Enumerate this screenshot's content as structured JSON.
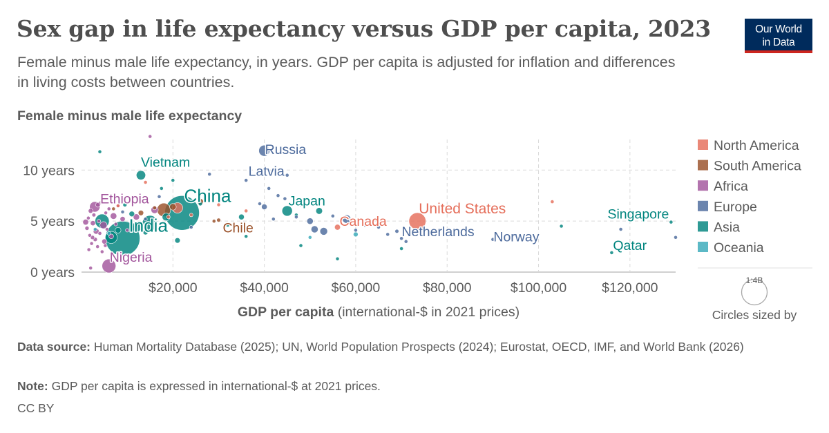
{
  "header": {
    "title": "Sex gap in life expectancy versus GDP per capita, 2023",
    "subtitle": "Female minus male life expectancy, in years. GDP per capita is adjusted for inflation and differences in living costs between countries.",
    "logo_line1": "Our World",
    "logo_line2": "in Data"
  },
  "footer": {
    "source_label": "Data source:",
    "source_text": "Human Mortality Database (2025); UN, World Population Prospects (2024); Eurostat, OECD, IMF, and World Bank (2026)",
    "note_label": "Note:",
    "note_text": "GDP per capita is expressed in international-$ at 2021 prices.",
    "license": "CC BY"
  },
  "chart_data": {
    "type": "scatter",
    "title": "Sex gap in life expectancy versus GDP per capita, 2023",
    "ylabel": "Female minus male life expectancy",
    "xlabel_bold": "GDP per capita",
    "xlabel_rest": "(international-$ in 2021 prices)",
    "xlim": [
      0,
      130000
    ],
    "ylim": [
      0,
      13
    ],
    "x_ticks": [
      {
        "value": 20000,
        "label": "$20,000"
      },
      {
        "value": 40000,
        "label": "$40,000"
      },
      {
        "value": 60000,
        "label": "$60,000"
      },
      {
        "value": 80000,
        "label": "$80,000"
      },
      {
        "value": 100000,
        "label": "$100,000"
      },
      {
        "value": 120000,
        "label": "$120,000"
      }
    ],
    "y_ticks": [
      {
        "value": 0,
        "label": "0 years"
      },
      {
        "value": 5,
        "label": "5 years"
      },
      {
        "value": 10,
        "label": "10 years"
      }
    ],
    "grid": true,
    "legend_position": "right",
    "size_legend": {
      "value_label": "1:4B",
      "caption": "Circles sized by"
    },
    "series": [
      {
        "name": "North America",
        "color": "#e56e5a"
      },
      {
        "name": "South America",
        "color": "#9a5129"
      },
      {
        "name": "Africa",
        "color": "#a2559c"
      },
      {
        "name": "Europe",
        "color": "#4c6a9c"
      },
      {
        "name": "Asia",
        "color": "#00847e"
      },
      {
        "name": "Oceania",
        "color": "#38aaba"
      }
    ],
    "labeled_points": [
      {
        "label": "Russia",
        "region": "Europe",
        "x": 40000,
        "y": 11.9,
        "pop": 144
      },
      {
        "label": "Latvia",
        "region": "Europe",
        "x": 45000,
        "y": 9.5,
        "pop": 2
      },
      {
        "label": "Vietnam",
        "region": "Asia",
        "x": 13000,
        "y": 9.5,
        "pop": 99
      },
      {
        "label": "Ethiopia",
        "region": "Africa",
        "x": 2900,
        "y": 6.4,
        "pop": 126
      },
      {
        "label": "China",
        "region": "Asia",
        "x": 22000,
        "y": 5.8,
        "pop": 1410
      },
      {
        "label": "India",
        "region": "Asia",
        "x": 9000,
        "y": 3.3,
        "pop": 1430
      },
      {
        "label": "Nigeria",
        "region": "Africa",
        "x": 6000,
        "y": 0.6,
        "pop": 223
      },
      {
        "label": "Japan",
        "region": "Asia",
        "x": 45000,
        "y": 6.0,
        "pop": 124
      },
      {
        "label": "Chile",
        "region": "South America",
        "x": 30000,
        "y": 5.1,
        "pop": 19
      },
      {
        "label": "Canada",
        "region": "North America",
        "x": 56000,
        "y": 4.4,
        "pop": 39
      },
      {
        "label": "United States",
        "region": "North America",
        "x": 73500,
        "y": 5.0,
        "pop": 335
      },
      {
        "label": "Netherlands",
        "region": "Europe",
        "x": 69000,
        "y": 4.0,
        "pop": 18
      },
      {
        "label": "Norway",
        "region": "Europe",
        "x": 90000,
        "y": 3.2,
        "pop": 5
      },
      {
        "label": "Singapore",
        "region": "Asia",
        "x": 129000,
        "y": 4.9,
        "pop": 6
      },
      {
        "label": "Qatar",
        "region": "Asia",
        "x": 116000,
        "y": 1.9,
        "pop": 3
      }
    ],
    "points": [
      {
        "region": "Africa",
        "x": 1200,
        "y": 4.3,
        "pop": 20
      },
      {
        "region": "Africa",
        "x": 1500,
        "y": 5.3,
        "pop": 12
      },
      {
        "region": "Africa",
        "x": 1800,
        "y": 3.6,
        "pop": 15
      },
      {
        "region": "Africa",
        "x": 2000,
        "y": 6.0,
        "pop": 25
      },
      {
        "region": "Africa",
        "x": 2200,
        "y": 2.8,
        "pop": 10
      },
      {
        "region": "Africa",
        "x": 2500,
        "y": 4.8,
        "pop": 30
      },
      {
        "region": "Africa",
        "x": 2700,
        "y": 5.6,
        "pop": 18
      },
      {
        "region": "Africa",
        "x": 3000,
        "y": 3.2,
        "pop": 22
      },
      {
        "region": "Africa",
        "x": 3200,
        "y": 4.0,
        "pop": 40
      },
      {
        "region": "Africa",
        "x": 3500,
        "y": 2.5,
        "pop": 14
      },
      {
        "region": "Africa",
        "x": 3800,
        "y": 5.0,
        "pop": 12
      },
      {
        "region": "Africa",
        "x": 4000,
        "y": 3.8,
        "pop": 16
      },
      {
        "region": "Africa",
        "x": 4200,
        "y": 6.8,
        "pop": 10
      },
      {
        "region": "Africa",
        "x": 4500,
        "y": 2.0,
        "pop": 8
      },
      {
        "region": "Africa",
        "x": 4800,
        "y": 4.6,
        "pop": 60
      },
      {
        "region": "Africa",
        "x": 5000,
        "y": 3.0,
        "pop": 30
      },
      {
        "region": "Africa",
        "x": 5300,
        "y": 5.8,
        "pop": 11
      },
      {
        "region": "Africa",
        "x": 5600,
        "y": 4.2,
        "pop": 15
      },
      {
        "region": "Africa",
        "x": 6000,
        "y": 6.2,
        "pop": 9
      },
      {
        "region": "Africa",
        "x": 6500,
        "y": 3.5,
        "pop": 25
      },
      {
        "region": "Africa",
        "x": 7000,
        "y": 5.5,
        "pop": 50
      },
      {
        "region": "Africa",
        "x": 7500,
        "y": 4.7,
        "pop": 12
      },
      {
        "region": "Africa",
        "x": 8000,
        "y": 6.5,
        "pop": 8
      },
      {
        "region": "Africa",
        "x": 9000,
        "y": 5.2,
        "pop": 30
      },
      {
        "region": "Africa",
        "x": 10000,
        "y": 4.1,
        "pop": 10
      },
      {
        "region": "Africa",
        "x": 11000,
        "y": 6.9,
        "pop": 6
      },
      {
        "region": "Africa",
        "x": 12000,
        "y": 5.4,
        "pop": 45
      },
      {
        "region": "Africa",
        "x": 14000,
        "y": 4.5,
        "pop": 4
      },
      {
        "region": "Africa",
        "x": 15000,
        "y": 13.3,
        "pop": 2
      },
      {
        "region": "Africa",
        "x": 16000,
        "y": 6.1,
        "pop": 60
      },
      {
        "region": "Africa",
        "x": 2000,
        "y": 0.4,
        "pop": 6
      },
      {
        "region": "Africa",
        "x": 1600,
        "y": 2.2,
        "pop": 14
      },
      {
        "region": "Africa",
        "x": 2400,
        "y": 3.4,
        "pop": 20
      },
      {
        "region": "Africa",
        "x": 3600,
        "y": 6.6,
        "pop": 25
      },
      {
        "region": "Africa",
        "x": 5200,
        "y": 2.6,
        "pop": 12
      },
      {
        "region": "Africa",
        "x": 900,
        "y": 4.9,
        "pop": 40
      },
      {
        "region": "Asia",
        "x": 4000,
        "y": 11.8,
        "pop": 3
      },
      {
        "region": "Asia",
        "x": 4500,
        "y": 5.0,
        "pop": 230
      },
      {
        "region": "Asia",
        "x": 6500,
        "y": 3.4,
        "pop": 170
      },
      {
        "region": "Asia",
        "x": 8000,
        "y": 4.1,
        "pop": 40
      },
      {
        "region": "Asia",
        "x": 9500,
        "y": 6.6,
        "pop": 20
      },
      {
        "region": "Asia",
        "x": 11000,
        "y": 5.7,
        "pop": 35
      },
      {
        "region": "Asia",
        "x": 12000,
        "y": 4.4,
        "pop": 110
      },
      {
        "region": "Asia",
        "x": 14000,
        "y": 3.9,
        "pop": 30
      },
      {
        "region": "Asia",
        "x": 15000,
        "y": 4.8,
        "pop": 275
      },
      {
        "region": "Asia",
        "x": 17500,
        "y": 8.2,
        "pop": 10
      },
      {
        "region": "Asia",
        "x": 18500,
        "y": 5.4,
        "pop": 71
      },
      {
        "region": "Asia",
        "x": 20000,
        "y": 9.0,
        "pop": 4
      },
      {
        "region": "Asia",
        "x": 21000,
        "y": 3.1,
        "pop": 34
      },
      {
        "region": "Asia",
        "x": 26000,
        "y": 6.7,
        "pop": 20
      },
      {
        "region": "Asia",
        "x": 35000,
        "y": 5.4,
        "pop": 37
      },
      {
        "region": "Asia",
        "x": 36000,
        "y": 3.5,
        "pop": 4
      },
      {
        "region": "Asia",
        "x": 47000,
        "y": 5.6,
        "pop": 10
      },
      {
        "region": "Asia",
        "x": 48000,
        "y": 2.6,
        "pop": 4
      },
      {
        "region": "Asia",
        "x": 52000,
        "y": 6.0,
        "pop": 52
      },
      {
        "region": "Asia",
        "x": 56000,
        "y": 1.3,
        "pop": 2
      },
      {
        "region": "Asia",
        "x": 70000,
        "y": 2.3,
        "pop": 1.5
      },
      {
        "region": "Asia",
        "x": 105000,
        "y": 4.5,
        "pop": 1
      },
      {
        "region": "Asia",
        "x": 32000,
        "y": 4.6,
        "pop": 3
      },
      {
        "region": "Europe",
        "x": 14000,
        "y": 5.2,
        "pop": 8
      },
      {
        "region": "Europe",
        "x": 17000,
        "y": 7.4,
        "pop": 7
      },
      {
        "region": "Europe",
        "x": 24000,
        "y": 4.4,
        "pop": 8
      },
      {
        "region": "Europe",
        "x": 28000,
        "y": 9.6,
        "pop": 4
      },
      {
        "region": "Europe",
        "x": 36000,
        "y": 9.0,
        "pop": 2
      },
      {
        "region": "Europe",
        "x": 39000,
        "y": 6.7,
        "pop": 10
      },
      {
        "region": "Europe",
        "x": 40000,
        "y": 6.4,
        "pop": 38
      },
      {
        "region": "Europe",
        "x": 41000,
        "y": 8.2,
        "pop": 1.3
      },
      {
        "region": "Europe",
        "x": 42000,
        "y": 5.2,
        "pop": 3
      },
      {
        "region": "Europe",
        "x": 43000,
        "y": 7.5,
        "pop": 2.8
      },
      {
        "region": "Europe",
        "x": 44500,
        "y": 7.2,
        "pop": 10
      },
      {
        "region": "Europe",
        "x": 47000,
        "y": 5.4,
        "pop": 10
      },
      {
        "region": "Europe",
        "x": 48000,
        "y": 6.6,
        "pop": 2
      },
      {
        "region": "Europe",
        "x": 50000,
        "y": 5.0,
        "pop": 47
      },
      {
        "region": "Europe",
        "x": 51000,
        "y": 4.2,
        "pop": 59
      },
      {
        "region": "Europe",
        "x": 53000,
        "y": 4.0,
        "pop": 68
      },
      {
        "region": "Europe",
        "x": 55000,
        "y": 5.5,
        "pop": 5.5
      },
      {
        "region": "Europe",
        "x": 58000,
        "y": 5.2,
        "pop": 84
      },
      {
        "region": "Europe",
        "x": 60000,
        "y": 4.1,
        "pop": 11.8
      },
      {
        "region": "Europe",
        "x": 62000,
        "y": 4.6,
        "pop": 9
      },
      {
        "region": "Europe",
        "x": 65000,
        "y": 4.4,
        "pop": 10.5
      },
      {
        "region": "Europe",
        "x": 67000,
        "y": 3.7,
        "pop": 5.9
      },
      {
        "region": "Europe",
        "x": 70000,
        "y": 3.3,
        "pop": 8.8
      },
      {
        "region": "Europe",
        "x": 71000,
        "y": 3.0,
        "pop": 5.1
      },
      {
        "region": "Europe",
        "x": 118000,
        "y": 4.2,
        "pop": 0.6
      },
      {
        "region": "Europe",
        "x": 130000,
        "y": 3.4,
        "pop": 0.7
      },
      {
        "region": "Europe",
        "x": 9000,
        "y": 5.9,
        "pop": 4
      },
      {
        "region": "North America",
        "x": 8000,
        "y": 6.5,
        "pop": 7
      },
      {
        "region": "North America",
        "x": 14000,
        "y": 8.8,
        "pop": 6
      },
      {
        "region": "North America",
        "x": 19000,
        "y": 5.4,
        "pop": 10
      },
      {
        "region": "North America",
        "x": 21000,
        "y": 6.3,
        "pop": 128
      },
      {
        "region": "North America",
        "x": 24000,
        "y": 5.6,
        "pop": 5
      },
      {
        "region": "North America",
        "x": 30000,
        "y": 6.6,
        "pop": 3
      },
      {
        "region": "North America",
        "x": 36000,
        "y": 6.0,
        "pop": 0.4
      },
      {
        "region": "North America",
        "x": 103000,
        "y": 6.9,
        "pop": 0.06
      },
      {
        "region": "South America",
        "x": 7000,
        "y": 6.2,
        "pop": 12
      },
      {
        "region": "South America",
        "x": 13000,
        "y": 5.8,
        "pop": 34
      },
      {
        "region": "South America",
        "x": 16000,
        "y": 6.3,
        "pop": 18
      },
      {
        "region": "South America",
        "x": 18000,
        "y": 6.1,
        "pop": 216
      },
      {
        "region": "South America",
        "x": 20000,
        "y": 6.4,
        "pop": 52
      },
      {
        "region": "South America",
        "x": 26000,
        "y": 6.9,
        "pop": 46
      },
      {
        "region": "South America",
        "x": 29000,
        "y": 5.0,
        "pop": 3.4
      },
      {
        "region": "Oceania",
        "x": 3000,
        "y": 4.2,
        "pop": 10
      },
      {
        "region": "Oceania",
        "x": 6000,
        "y": 3.8,
        "pop": 1
      },
      {
        "region": "Oceania",
        "x": 50000,
        "y": 3.4,
        "pop": 5.2
      },
      {
        "region": "Oceania",
        "x": 60000,
        "y": 3.7,
        "pop": 27
      }
    ]
  }
}
